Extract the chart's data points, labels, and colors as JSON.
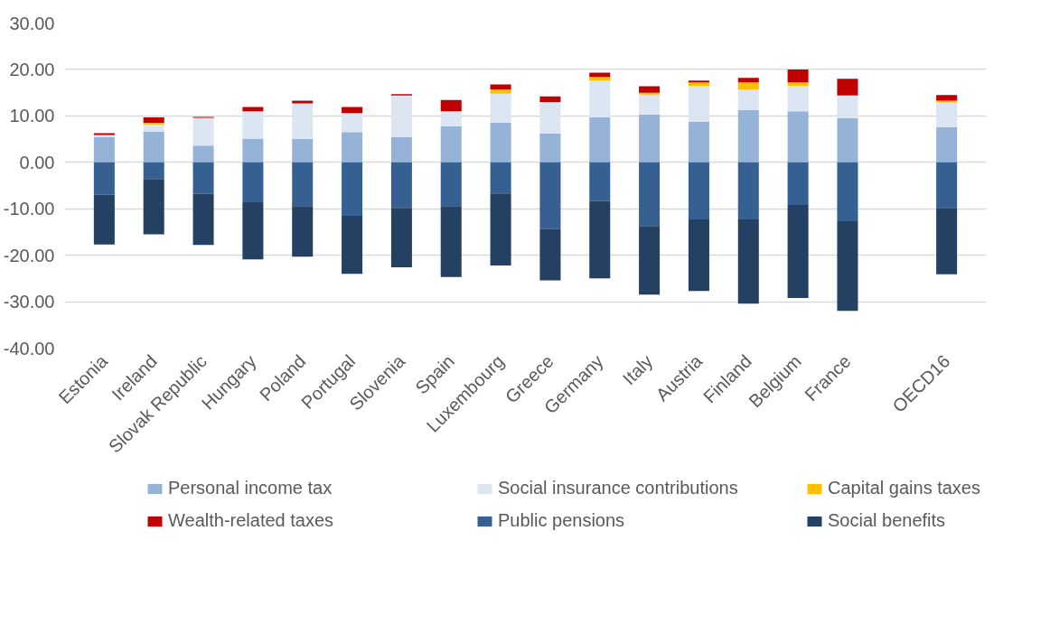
{
  "chart_data": {
    "type": "bar",
    "stacked": true,
    "categories": [
      "Estonia",
      "Ireland",
      "Slovak Republic",
      "Hungary",
      "Poland",
      "Portugal",
      "Slovenia",
      "Spain",
      "Luxembourg",
      "Greece",
      "Germany",
      "Italy",
      "Austria",
      "Finland",
      "Belgium",
      "France",
      null,
      "OECD16"
    ],
    "series": [
      {
        "name": "Personal income tax",
        "color": "#95b3d7",
        "values": [
          5.4,
          6.6,
          3.6,
          5.1,
          5.0,
          6.5,
          5.4,
          7.8,
          8.5,
          6.2,
          9.7,
          10.3,
          8.7,
          11.3,
          11.0,
          9.5,
          null,
          7.6
        ]
      },
      {
        "name": "Social insurance contributions",
        "color": "#dce6f2",
        "values": [
          0.5,
          1.5,
          6.0,
          5.9,
          7.7,
          4.1,
          9.0,
          3.2,
          6.3,
          6.8,
          7.9,
          4.3,
          7.8,
          4.4,
          5.5,
          4.9,
          null,
          5.3
        ]
      },
      {
        "name": "Capital gains taxes",
        "color": "#ffc000",
        "values": [
          0,
          0.4,
          0,
          0,
          0,
          0,
          0,
          0,
          0.9,
          0,
          0.8,
          0.4,
          0.7,
          1.5,
          0.7,
          0,
          null,
          0.4
        ]
      },
      {
        "name": "Wealth-related taxes",
        "color": "#c00000",
        "values": [
          0.4,
          1.2,
          0.2,
          0.9,
          0.6,
          1.3,
          0.3,
          2.4,
          1.1,
          1.2,
          0.9,
          1.4,
          0.4,
          1.0,
          2.8,
          3.6,
          null,
          1.2
        ]
      },
      {
        "name": "Public pensions",
        "color": "#366092",
        "values": [
          -7.0,
          -3.6,
          -6.8,
          -8.6,
          -9.4,
          -11.5,
          -9.8,
          -9.4,
          -6.7,
          -14.4,
          -8.3,
          -13.7,
          -12.3,
          -12.3,
          -9.2,
          -12.7,
          null,
          -9.8
        ]
      },
      {
        "name": "Social benefits",
        "color": "#244062",
        "values": [
          -10.7,
          -11.9,
          -11.0,
          -12.3,
          -10.9,
          -12.5,
          -12.8,
          -15.3,
          -15.5,
          -11.0,
          -16.7,
          -14.8,
          -15.4,
          -18.1,
          -20.0,
          -19.3,
          null,
          -14.3
        ]
      }
    ],
    "ylim": [
      -40,
      30
    ],
    "yticks": [
      {
        "value": -40,
        "label": "-40.00"
      },
      {
        "value": -30,
        "label": "-30.00"
      },
      {
        "value": -20,
        "label": "-20.00"
      },
      {
        "value": -10,
        "label": "-10.00"
      },
      {
        "value": 0,
        "label": "0.00"
      },
      {
        "value": 10,
        "label": "10.00"
      },
      {
        "value": 20,
        "label": "20.00"
      },
      {
        "value": 30,
        "label": "30.00"
      }
    ],
    "grid": "y",
    "legend": "bottom"
  }
}
